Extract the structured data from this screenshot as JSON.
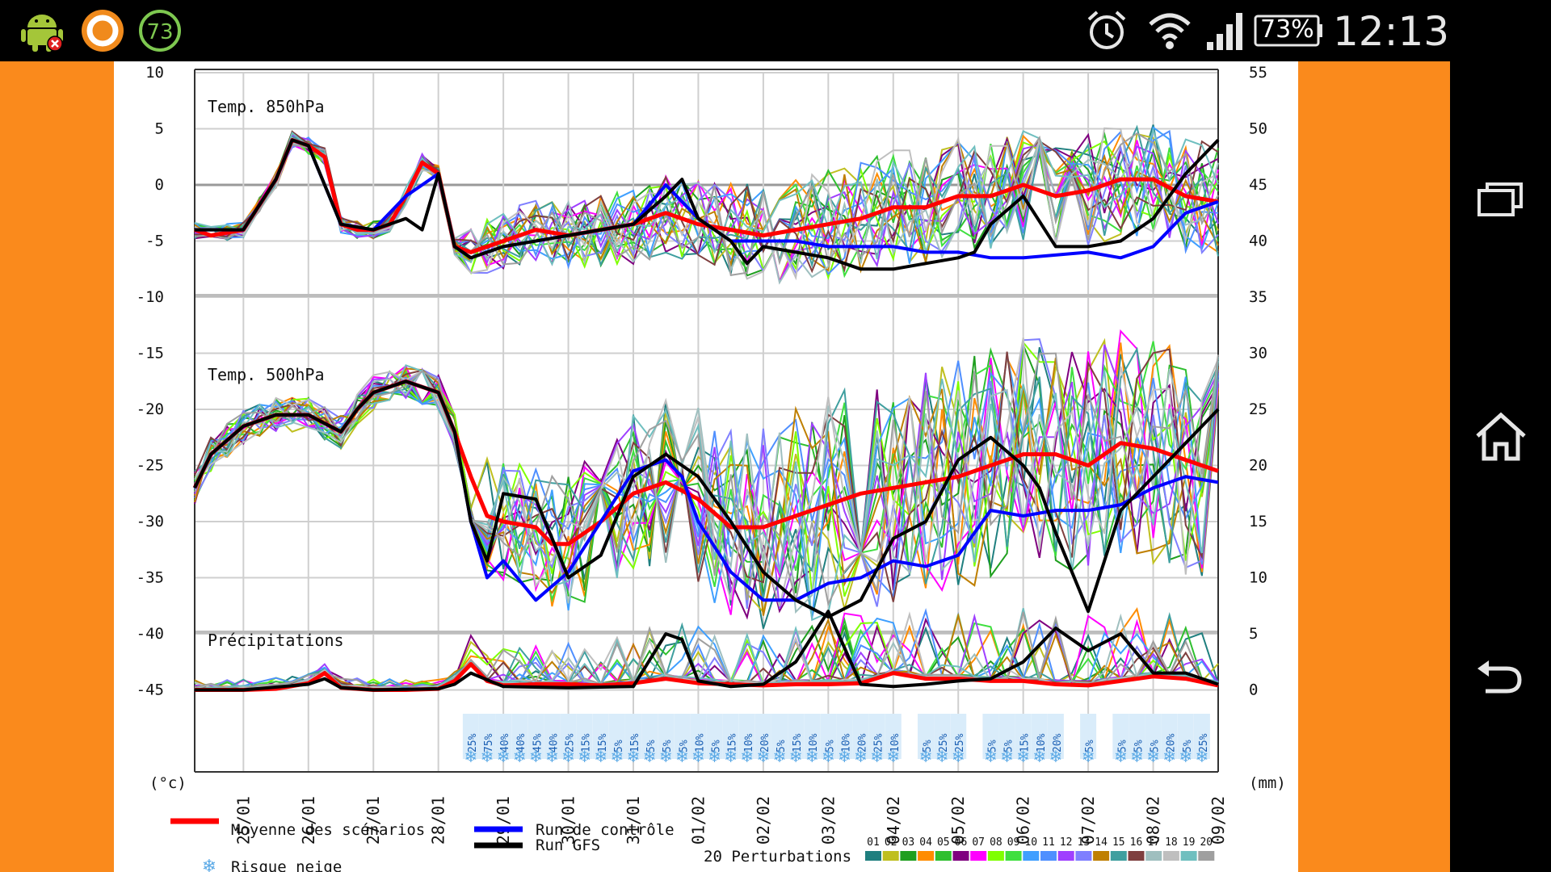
{
  "status_bar": {
    "time": "12:13",
    "battery": "73%",
    "notification_badge": "73",
    "icons": [
      "android-debug-icon",
      "circle-app-icon",
      "badge-73-icon",
      "alarm-icon",
      "wifi-icon",
      "signal-icon",
      "battery-icon"
    ]
  },
  "nav_bar": {
    "icons": [
      "recent-apps-icon",
      "home-icon",
      "back-icon"
    ]
  },
  "colors": {
    "mean": "#ff0000",
    "control": "#0000ff",
    "gfs": "#000000",
    "orange": "#fa8a1c",
    "snow": "#5aa9e6",
    "perturbations": [
      "#1f7f7f",
      "#bfbf1f",
      "#1f9f1f",
      "#ff8c00",
      "#2fbf2f",
      "#7f007f",
      "#ff00ff",
      "#7fff00",
      "#3fdf3f",
      "#3f9fff",
      "#4f8fff",
      "#9f3fff",
      "#7f7fff",
      "#bf7f00",
      "#3f9f9f",
      "#7f3f3f",
      "#9fbfbf",
      "#bfbfbf",
      "#6fbfbf",
      "#9f9f9f"
    ]
  },
  "chart_data": {
    "type": "line",
    "left_axis": {
      "unit": "(°c)",
      "ticks": [
        10,
        5,
        0,
        -5,
        -10,
        -15,
        -20,
        -25,
        -30,
        -35,
        -40,
        -45
      ]
    },
    "right_axis": {
      "unit": "(mm)",
      "ticks": [
        55,
        50,
        45,
        40,
        35,
        30,
        25,
        20,
        15,
        10,
        5,
        0
      ]
    },
    "x_labels": [
      "25/01",
      "26/01",
      "27/01",
      "28/01",
      "29/01",
      "30/01",
      "31/01",
      "01/02",
      "02/02",
      "03/02",
      "04/02",
      "05/02",
      "06/02",
      "07/02",
      "08/02",
      "09/02"
    ],
    "x_domain": [
      24.25,
      40.0
    ],
    "panel_labels": [
      "Temp. 850hPa",
      "Temp. 500hPa",
      "Précipitations"
    ],
    "series": [
      {
        "name": "Moyenne des scénarios",
        "panel": "850hPa",
        "x": [
          24.25,
          24.5,
          25.0,
          25.5,
          25.75,
          26.0,
          26.25,
          26.5,
          26.75,
          27.0,
          27.25,
          27.5,
          27.75,
          28.0,
          28.25,
          28.5,
          28.75,
          29.0,
          29.5,
          30.0,
          30.5,
          31.0,
          31.5,
          32.0,
          32.5,
          33.0,
          33.5,
          34.0,
          34.5,
          35.0,
          35.5,
          36.0,
          36.5,
          37.0,
          37.5,
          38.0,
          38.5,
          39.0,
          39.5,
          40.0
        ],
        "values": [
          -4.0,
          -4.5,
          -4.0,
          0.5,
          4.0,
          3.5,
          2.5,
          -3.5,
          -4.0,
          -4.0,
          -3.5,
          -1.0,
          2.0,
          1.0,
          -5.5,
          -6.0,
          -5.5,
          -5.0,
          -4.0,
          -4.5,
          -4.0,
          -3.5,
          -2.5,
          -3.5,
          -4.0,
          -4.5,
          -4.0,
          -3.5,
          -3.0,
          -2.0,
          -2.0,
          -1.0,
          -1.0,
          0.0,
          -1.0,
          -0.5,
          0.5,
          0.5,
          -1.0,
          -1.5
        ]
      },
      {
        "name": "Run de contrôle",
        "panel": "850hPa",
        "x": [
          24.25,
          25.0,
          25.5,
          25.75,
          26.0,
          26.5,
          27.0,
          27.5,
          28.0,
          28.25,
          28.5,
          29.0,
          30.0,
          31.0,
          31.5,
          32.0,
          32.5,
          33.0,
          33.5,
          34.0,
          34.5,
          35.0,
          35.5,
          36.0,
          36.5,
          37.0,
          38.0,
          38.5,
          39.0,
          39.5,
          40.0
        ],
        "values": [
          -4.0,
          -4.0,
          0.5,
          4.0,
          3.5,
          -3.5,
          -4.0,
          -1.0,
          1.0,
          -5.5,
          -6.5,
          -5.5,
          -4.5,
          -3.5,
          0.0,
          -3.0,
          -5.0,
          -5.0,
          -5.0,
          -5.5,
          -5.5,
          -5.5,
          -6.0,
          -6.0,
          -6.5,
          -6.5,
          -6.0,
          -6.5,
          -5.5,
          -2.5,
          -1.5
        ]
      },
      {
        "name": "Run GFS",
        "panel": "850hPa",
        "x": [
          24.25,
          25.0,
          25.5,
          25.75,
          26.0,
          26.5,
          27.0,
          27.5,
          27.75,
          28.0,
          28.25,
          28.5,
          29.0,
          30.0,
          31.0,
          31.5,
          31.75,
          32.0,
          32.5,
          32.75,
          33.0,
          33.5,
          34.0,
          34.5,
          35.0,
          35.5,
          36.0,
          36.25,
          36.5,
          37.0,
          37.5,
          38.0,
          38.5,
          39.0,
          39.5,
          40.0
        ],
        "values": [
          -4.0,
          -4.0,
          0.5,
          4.0,
          3.5,
          -3.5,
          -4.0,
          -3.0,
          -4.0,
          1.0,
          -5.5,
          -6.5,
          -5.5,
          -4.5,
          -3.5,
          -1.0,
          0.5,
          -3.0,
          -5.0,
          -7.0,
          -5.5,
          -6.0,
          -6.5,
          -7.5,
          -7.5,
          -7.0,
          -6.5,
          -6.0,
          -3.5,
          -1.0,
          -5.5,
          -5.5,
          -5.0,
          -3.0,
          1.0,
          4.0
        ]
      },
      {
        "name": "Moyenne des scénarios",
        "panel": "500hPa",
        "x": [
          24.25,
          24.5,
          25.0,
          25.5,
          26.0,
          26.5,
          26.75,
          27.0,
          27.5,
          28.0,
          28.25,
          28.5,
          28.75,
          29.0,
          29.5,
          29.75,
          30.0,
          30.5,
          31.0,
          31.5,
          32.0,
          32.5,
          33.0,
          33.5,
          34.0,
          34.5,
          35.0,
          35.5,
          36.0,
          36.5,
          37.0,
          37.5,
          38.0,
          38.5,
          39.0,
          39.5,
          40.0
        ],
        "values": [
          -27.0,
          -24.0,
          -21.5,
          -20.5,
          -20.5,
          -22.0,
          -20.0,
          -18.5,
          -17.5,
          -18.5,
          -22.0,
          -26.0,
          -29.5,
          -30.0,
          -30.5,
          -32.0,
          -32.0,
          -30.0,
          -27.5,
          -26.5,
          -28.0,
          -30.5,
          -30.5,
          -29.5,
          -28.5,
          -27.5,
          -27.0,
          -26.5,
          -26.0,
          -25.0,
          -24.0,
          -24.0,
          -25.0,
          -23.0,
          -23.5,
          -24.5,
          -25.5
        ]
      },
      {
        "name": "Run de contrôle",
        "panel": "500hPa",
        "x": [
          24.25,
          24.5,
          25.0,
          25.5,
          26.0,
          26.5,
          26.75,
          27.0,
          27.5,
          28.0,
          28.25,
          28.5,
          28.75,
          29.0,
          29.5,
          30.0,
          30.5,
          31.0,
          31.5,
          31.75,
          32.0,
          32.5,
          33.0,
          33.5,
          34.0,
          34.5,
          35.0,
          35.5,
          36.0,
          36.5,
          37.0,
          37.5,
          38.0,
          38.5,
          39.0,
          39.5,
          40.0
        ],
        "values": [
          -27.0,
          -24.0,
          -21.5,
          -20.5,
          -20.5,
          -22.0,
          -20.0,
          -18.5,
          -17.5,
          -18.5,
          -22.0,
          -30.0,
          -35.0,
          -33.5,
          -37.0,
          -34.5,
          -30.0,
          -25.5,
          -24.5,
          -26.0,
          -30.0,
          -34.5,
          -37.0,
          -37.0,
          -35.5,
          -35.0,
          -33.5,
          -34.0,
          -33.0,
          -29.0,
          -29.5,
          -29.0,
          -29.0,
          -28.5,
          -27.0,
          -26.0,
          -26.5
        ]
      },
      {
        "name": "Run GFS",
        "panel": "500hPa",
        "x": [
          24.25,
          24.5,
          25.0,
          25.5,
          26.0,
          26.5,
          26.75,
          27.0,
          27.5,
          28.0,
          28.25,
          28.5,
          28.75,
          29.0,
          29.5,
          30.0,
          30.5,
          31.0,
          31.5,
          32.0,
          32.5,
          33.0,
          33.5,
          34.0,
          34.5,
          35.0,
          35.5,
          36.0,
          36.5,
          37.0,
          37.25,
          37.5,
          38.0,
          38.5,
          39.0,
          39.5,
          40.0
        ],
        "values": [
          -27.0,
          -24.0,
          -21.5,
          -20.5,
          -20.5,
          -22.0,
          -20.0,
          -18.5,
          -17.5,
          -18.5,
          -22.0,
          -30.0,
          -33.5,
          -27.5,
          -28.0,
          -35.0,
          -33.0,
          -26.0,
          -24.0,
          -26.0,
          -30.0,
          -34.5,
          -37.0,
          -38.5,
          -37.0,
          -31.5,
          -30.0,
          -24.5,
          -22.5,
          -25.0,
          -27.0,
          -31.0,
          -38.0,
          -29.0,
          -26.0,
          -23.0,
          -20.0
        ]
      },
      {
        "name": "Moyenne des scénarios",
        "panel": "precip",
        "x": [
          24.25,
          25.0,
          25.5,
          26.0,
          26.25,
          26.5,
          27.0,
          27.5,
          28.0,
          28.25,
          28.5,
          28.75,
          29.0,
          29.5,
          30.0,
          30.5,
          31.0,
          31.5,
          32.0,
          32.5,
          33.0,
          33.5,
          34.0,
          34.5,
          35.0,
          35.5,
          36.0,
          36.5,
          37.0,
          37.5,
          38.0,
          38.5,
          39.0,
          39.5,
          40.0
        ],
        "values": [
          0.0,
          0.0,
          0.1,
          0.6,
          1.5,
          0.2,
          0.0,
          0.0,
          0.1,
          0.8,
          2.3,
          0.8,
          0.4,
          0.5,
          0.5,
          0.4,
          0.6,
          1.0,
          0.6,
          0.5,
          0.4,
          0.5,
          0.5,
          0.6,
          1.5,
          1.0,
          1.0,
          0.8,
          0.8,
          0.5,
          0.4,
          0.8,
          1.2,
          1.0,
          0.4
        ]
      },
      {
        "name": "Run GFS",
        "panel": "precip",
        "x": [
          24.25,
          25.0,
          26.0,
          26.25,
          26.5,
          27.0,
          28.0,
          28.25,
          28.5,
          29.0,
          30.0,
          31.0,
          31.5,
          31.75,
          32.0,
          32.5,
          33.0,
          33.5,
          34.0,
          34.5,
          35.0,
          35.5,
          36.0,
          36.5,
          37.0,
          37.5,
          38.0,
          38.5,
          39.0,
          39.5,
          40.0
        ],
        "values": [
          0.0,
          0.0,
          0.5,
          1.0,
          0.2,
          0.0,
          0.1,
          0.5,
          1.5,
          0.3,
          0.2,
          0.3,
          5.0,
          4.5,
          0.8,
          0.3,
          0.5,
          2.5,
          7.0,
          0.5,
          0.3,
          0.5,
          0.8,
          1.0,
          2.5,
          5.5,
          3.5,
          5.0,
          1.5,
          1.5,
          0.5
        ]
      }
    ],
    "snow_risk": [
      {
        "x": 28.5,
        "label": "25%"
      },
      {
        "x": 28.75,
        "label": "75%"
      },
      {
        "x": 29.0,
        "label": "40%"
      },
      {
        "x": 29.25,
        "label": "40%"
      },
      {
        "x": 29.5,
        "label": "45%"
      },
      {
        "x": 29.75,
        "label": "40%"
      },
      {
        "x": 30.0,
        "label": "25%"
      },
      {
        "x": 30.25,
        "label": "15%"
      },
      {
        "x": 30.5,
        "label": "15%"
      },
      {
        "x": 30.75,
        "label": "5%"
      },
      {
        "x": 31.0,
        "label": "15%"
      },
      {
        "x": 31.25,
        "label": "5%"
      },
      {
        "x": 31.5,
        "label": "5%"
      },
      {
        "x": 31.75,
        "label": "5%"
      },
      {
        "x": 32.0,
        "label": "10%"
      },
      {
        "x": 32.25,
        "label": "5%"
      },
      {
        "x": 32.5,
        "label": "15%"
      },
      {
        "x": 32.75,
        "label": "10%"
      },
      {
        "x": 33.0,
        "label": "20%"
      },
      {
        "x": 33.25,
        "label": "5%"
      },
      {
        "x": 33.5,
        "label": "15%"
      },
      {
        "x": 33.75,
        "label": "10%"
      },
      {
        "x": 34.0,
        "label": "5%"
      },
      {
        "x": 34.25,
        "label": "10%"
      },
      {
        "x": 34.5,
        "label": "20%"
      },
      {
        "x": 34.75,
        "label": "25%"
      },
      {
        "x": 35.0,
        "label": "10%"
      },
      {
        "x": 35.5,
        "label": "5%"
      },
      {
        "x": 35.75,
        "label": "25%"
      },
      {
        "x": 36.0,
        "label": "25%"
      },
      {
        "x": 36.5,
        "label": "5%"
      },
      {
        "x": 36.75,
        "label": "5%"
      },
      {
        "x": 37.0,
        "label": "15%"
      },
      {
        "x": 37.25,
        "label": "10%"
      },
      {
        "x": 37.5,
        "label": "20%"
      },
      {
        "x": 38.0,
        "label": "5%"
      },
      {
        "x": 38.5,
        "label": "5%"
      },
      {
        "x": 38.75,
        "label": "5%"
      },
      {
        "x": 39.0,
        "label": "5%"
      },
      {
        "x": 39.25,
        "label": "20%"
      },
      {
        "x": 39.5,
        "label": "5%"
      },
      {
        "x": 39.75,
        "label": "25%"
      }
    ],
    "legend": {
      "mean": "Moyenne des scénarios",
      "control": "Run de contrôle",
      "gfs": "Run GFS",
      "snow": "Risque neige",
      "perturbations_title": "20 Perturbations",
      "perturbation_numbers": [
        "01",
        "02",
        "03",
        "04",
        "05",
        "06",
        "07",
        "08",
        "09",
        "10",
        "11",
        "12",
        "13",
        "14",
        "15",
        "16",
        "17",
        "18",
        "19",
        "20"
      ]
    }
  }
}
